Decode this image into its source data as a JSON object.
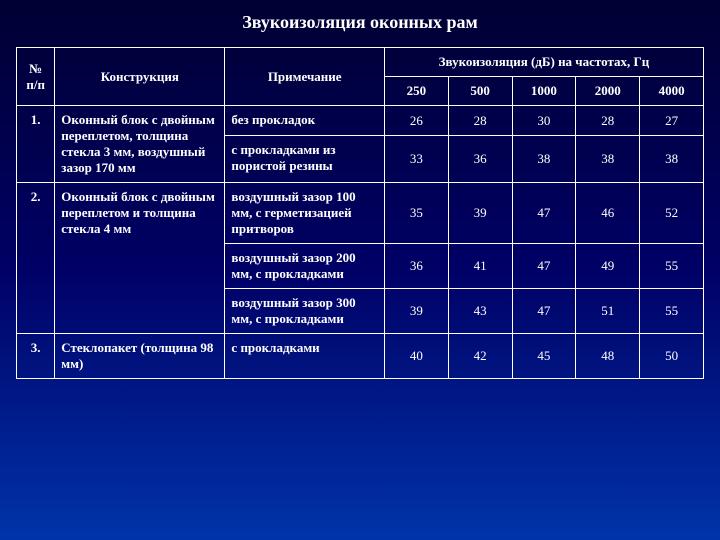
{
  "title": "Звукоизоляция оконных рам",
  "headers": {
    "num": "№ п/п",
    "construction": "Конструкция",
    "note": "Примечание",
    "sound": "Звукоизоляция (дБ) на частотах, Гц",
    "f250": "250",
    "f500": "500",
    "f1000": "1000",
    "f2000": "2000",
    "f4000": "4000"
  },
  "rows": {
    "r1": {
      "num": "1.",
      "constr": "Оконный блок с двойным переплетом, толщина стекла 3 мм, воздушный зазор 170 мм",
      "a": {
        "note": "без прокладок",
        "v": [
          "26",
          "28",
          "30",
          "28",
          "27"
        ]
      },
      "b": {
        "note": "с прокладками из пористой резины",
        "v": [
          "33",
          "36",
          "38",
          "38",
          "38"
        ]
      }
    },
    "r2": {
      "num": "2.",
      "constr": "Оконный блок с двойным переплетом и толщина стекла 4 мм",
      "a": {
        "note": "воздушный зазор 100 мм, с герметизацией притворов",
        "v": [
          "35",
          "39",
          "47",
          "46",
          "52"
        ]
      },
      "b": {
        "note": "воздушный зазор 200 мм, с прокладками",
        "v": [
          "36",
          "41",
          "47",
          "49",
          "55"
        ]
      },
      "c": {
        "note": "воздушный зазор 300 мм, с прокладками",
        "v": [
          "39",
          "43",
          "47",
          "51",
          "55"
        ]
      }
    },
    "r3": {
      "num": "3.",
      "constr": "Стеклопакет (толщина 98 мм)",
      "a": {
        "note": "с прокладками",
        "v": [
          "40",
          "42",
          "45",
          "48",
          "50"
        ]
      }
    }
  }
}
